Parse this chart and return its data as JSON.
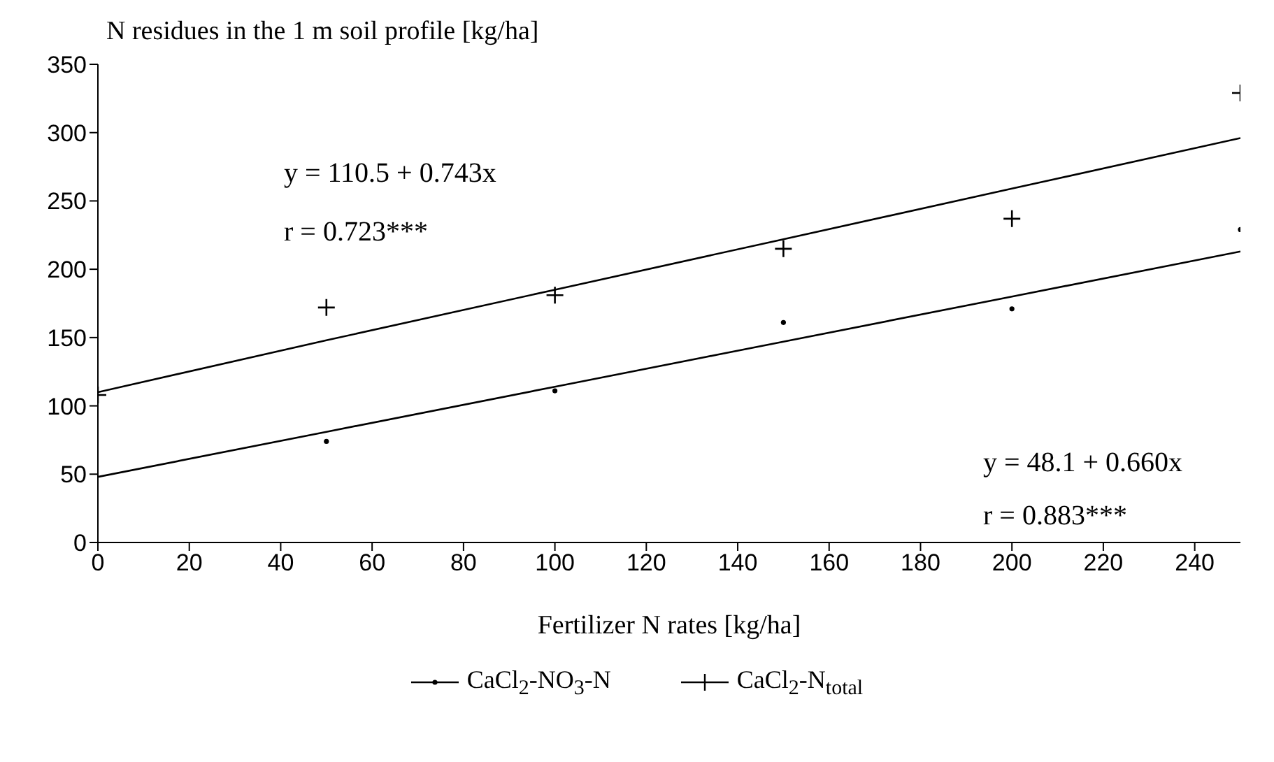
{
  "chart_data": {
    "type": "scatter",
    "ylabel": "N residues in the 1 m soil profile [kg/ha]",
    "xlabel": "Fertilizer N rates [kg/ha]",
    "x": [
      0,
      50,
      100,
      150,
      200,
      250
    ],
    "series": [
      {
        "name": "CaCl$_{2}$-NO$_{3}$-N",
        "color": "#000000",
        "marker": "circle",
        "values": [
          null,
          74,
          111,
          161,
          171,
          229
        ]
      },
      {
        "name": "CaCl$_{2}$-N$_{total}$",
        "color": "#000000",
        "marker": "cross",
        "values": [
          108,
          172,
          181,
          215,
          237,
          329
        ]
      },
      {
        "type": "line",
        "color": "#000000",
        "values": [
          110,
          148,
          185,
          222,
          259,
          296
        ]
      },
      {
        "type": "line",
        "color": "#000000",
        "values": [
          48,
          81,
          114,
          147,
          180,
          213
        ]
      }
    ],
    "xlim": [
      0,
      250
    ],
    "xticks": [
      0,
      20,
      40,
      60,
      80,
      100,
      120,
      140,
      160,
      180,
      200,
      220,
      240
    ],
    "ylim": [
      0,
      350
    ],
    "yticks": [
      0,
      50,
      100,
      150,
      200,
      250,
      300,
      350
    ],
    "grid": false,
    "legend": "bottom",
    "annotations": [
      "y = 110.5 + 0.743x",
      "r = 0.723***",
      "y = 48.1 + 0.660x",
      "r = 0.883***"
    ]
  }
}
